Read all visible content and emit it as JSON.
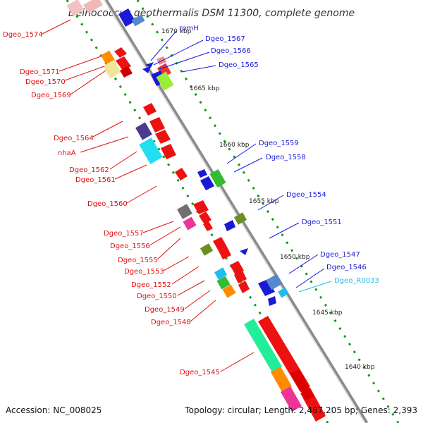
{
  "title": "Deinococcus geothermalis DSM 11300, complete genome",
  "footer": {
    "accession": "Accession: NC_008025",
    "summary": "Topology: circular; Length: 2,467,205 bp; Genes: 2,393"
  },
  "colors": {
    "left_label": "#e01010",
    "right_label": "#1a1ae0",
    "rna_label": "#22bbee",
    "backbone": "#888888",
    "ticks": "#118811"
  },
  "ticks": [
    "1670 kbp",
    "1665 kbp",
    "1660 kbp",
    "1655 kbp",
    "1650 kbp",
    "1645 kbp",
    "1640 kbp"
  ],
  "left_labels": [
    "Dgeo_1574",
    "Dgeo_1571",
    "Dgeo_1570",
    "Dgeo_1569",
    "Dgeo_1564",
    "nhaA",
    "Dgeo_1562",
    "Dgeo_1561",
    "Dgeo_1560",
    "Dgeo_1557",
    "Dgeo_1556",
    "Dgeo_1555",
    "Dgeo_1553",
    "Dgeo_1552",
    "Dgeo_1550",
    "Dgeo_1549",
    "Dgeo_1548",
    "Dgeo_1545"
  ],
  "right_labels": [
    "rpmH",
    "Dgeo_1567",
    "Dgeo_1566",
    "Dgeo_1565",
    "Dgeo_1559",
    "Dgeo_1558",
    "Dgeo_1554",
    "Dgeo_1551",
    "Dgeo_1547",
    "Dgeo_1546",
    "Dgeo_R0033"
  ]
}
